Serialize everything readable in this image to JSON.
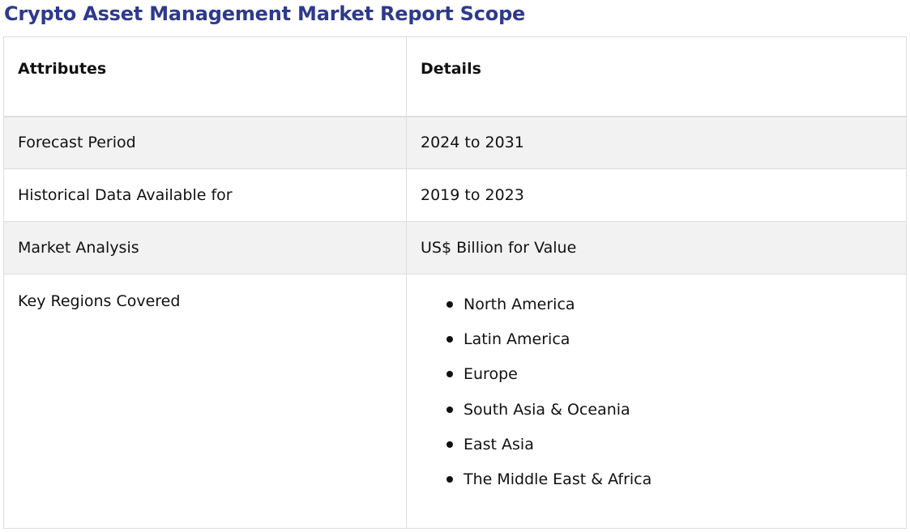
{
  "report": {
    "title": "Crypto Asset Management Market Report Scope"
  },
  "table": {
    "headers": {
      "attributes": "Attributes",
      "details": "Details"
    },
    "rows": [
      {
        "attribute": "Forecast Period",
        "detail": "2024 to 2031"
      },
      {
        "attribute": "Historical Data Available for",
        "detail": "2019 to 2023"
      },
      {
        "attribute": "Market Analysis",
        "detail": "US$ Billion for Value"
      },
      {
        "attribute": "Key Regions Covered"
      }
    ],
    "regions": [
      "North America",
      "Latin America",
      "Europe",
      "South Asia & Oceania",
      "East Asia",
      "The Middle East & Africa"
    ]
  }
}
